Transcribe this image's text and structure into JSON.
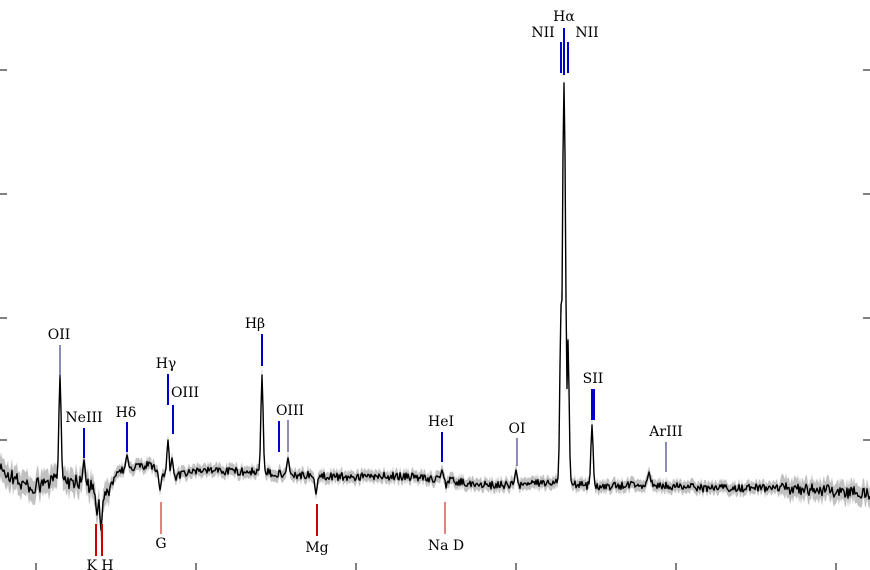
{
  "chart_data": {
    "type": "line",
    "title": "",
    "xlabel": "",
    "ylabel": "",
    "grid": false,
    "legend": "none",
    "xlim": [
      0,
      870
    ],
    "ylim": [
      0,
      570
    ],
    "colors": {
      "spectrum": "#000000",
      "error_band": "#c0c0c0",
      "emission": "#0000cc",
      "absorption": "#cc0000"
    },
    "continuum": {
      "x": [
        0,
        30,
        60,
        80,
        95,
        105,
        120,
        150,
        170,
        200,
        260,
        300,
        350,
        400,
        445,
        480,
        520,
        555,
        600,
        650,
        700,
        760,
        820,
        870
      ],
      "y": [
        100,
        82,
        90,
        88,
        80,
        75,
        100,
        105,
        92,
        100,
        98,
        95,
        93,
        94,
        90,
        85,
        85,
        88,
        83,
        86,
        82,
        82,
        80,
        76
      ]
    },
    "emission_peaks": [
      {
        "x": 60,
        "y": 195
      },
      {
        "x": 84,
        "y": 110
      },
      {
        "x": 127,
        "y": 115
      },
      {
        "x": 168,
        "y": 130
      },
      {
        "x": 172,
        "y": 112
      },
      {
        "x": 262,
        "y": 195
      },
      {
        "x": 288,
        "y": 112
      },
      {
        "x": 442,
        "y": 100
      },
      {
        "x": 516,
        "y": 100
      },
      {
        "x": 561,
        "y": 265
      },
      {
        "x": 564,
        "y": 487
      },
      {
        "x": 568,
        "y": 230
      },
      {
        "x": 592,
        "y": 145
      },
      {
        "x": 649,
        "y": 98
      }
    ],
    "absorption_dips": [
      {
        "x": 97,
        "y": 55
      },
      {
        "x": 101,
        "y": 40
      },
      {
        "x": 160,
        "y": 80
      },
      {
        "x": 316,
        "y": 76
      },
      {
        "x": 445,
        "y": 78
      }
    ],
    "emission_lines": [
      {
        "name": "OII",
        "x": 60
      },
      {
        "name": "NeIII",
        "x": 84
      },
      {
        "name": "Hδ",
        "x": 127
      },
      {
        "name": "Hγ",
        "x": 168
      },
      {
        "name": "OIII",
        "x": 173
      },
      {
        "name": "Hβ",
        "x": 262
      },
      {
        "name": "OIII",
        "x": 279
      },
      {
        "name": "OIII",
        "x": 288
      },
      {
        "name": "HeI",
        "x": 442
      },
      {
        "name": "OI",
        "x": 517
      },
      {
        "name": "NII",
        "x": 561
      },
      {
        "name": "Hα",
        "x": 564
      },
      {
        "name": "NII",
        "x": 568
      },
      {
        "name": "SII",
        "x": 592
      },
      {
        "name": "SII",
        "x": 594
      },
      {
        "name": "ArIII",
        "x": 666
      }
    ],
    "absorption_lines": [
      {
        "name": "K",
        "x": 96
      },
      {
        "name": "H",
        "x": 102
      },
      {
        "name": "G",
        "x": 161
      },
      {
        "name": "Mg",
        "x": 317
      },
      {
        "name": "Na D",
        "x": 445
      }
    ],
    "labels": {
      "oii": "OII",
      "neiii": "NeIII",
      "hdelta": "Hδ",
      "hgamma": "Hγ",
      "oiii_a": "OIII",
      "hbeta": "Hβ",
      "oiii_b": "OIII",
      "hei": "HeI",
      "oi": "OI",
      "nii_left": "NII",
      "halpha": "Hα",
      "nii_right": "NII",
      "sii": "SII",
      "ariii": "ArIII",
      "kh": "K H",
      "g": "G",
      "mg": "Mg",
      "nad": "Na  D"
    },
    "ticks": {
      "left_y": [
        70,
        194,
        318,
        440
      ],
      "right_y": [
        70,
        194,
        318,
        440
      ],
      "bottom_x": [
        36,
        196,
        356,
        516,
        676,
        836
      ]
    }
  }
}
